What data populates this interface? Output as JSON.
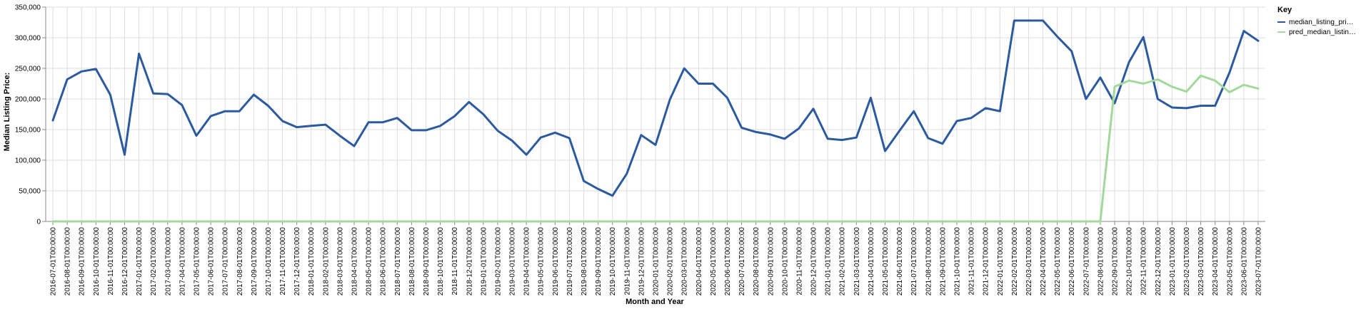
{
  "chart_data": {
    "type": "line",
    "xlabel": "Month and Year",
    "ylabel": "Median Listing Price:",
    "ylim": [
      0,
      350000
    ],
    "yticks": [
      "0",
      "50,000",
      "100,000",
      "150,000",
      "200,000",
      "250,000",
      "300,000",
      "350,000"
    ],
    "grid": true,
    "legend_position": "right",
    "legend_title": "Key",
    "x": [
      "2016-07-01T00:00:00",
      "2016-08-01T00:00:00",
      "2016-09-01T00:00:00",
      "2016-10-01T00:00:00",
      "2016-11-01T00:00:00",
      "2016-12-01T00:00:00",
      "2017-01-01T00:00:00",
      "2017-02-01T00:00:00",
      "2017-03-01T00:00:00",
      "2017-04-01T00:00:00",
      "2017-05-01T00:00:00",
      "2017-06-01T00:00:00",
      "2017-07-01T00:00:00",
      "2017-08-01T00:00:00",
      "2017-09-01T00:00:00",
      "2017-10-01T00:00:00",
      "2017-11-01T00:00:00",
      "2017-12-01T00:00:00",
      "2018-01-01T00:00:00",
      "2018-02-01T00:00:00",
      "2018-03-01T00:00:00",
      "2018-04-01T00:00:00",
      "2018-05-01T00:00:00",
      "2018-06-01T00:00:00",
      "2018-07-01T00:00:00",
      "2018-08-01T00:00:00",
      "2018-09-01T00:00:00",
      "2018-10-01T00:00:00",
      "2018-11-01T00:00:00",
      "2018-12-01T00:00:00",
      "2019-01-01T00:00:00",
      "2019-02-01T00:00:00",
      "2019-03-01T00:00:00",
      "2019-04-01T00:00:00",
      "2019-05-01T00:00:00",
      "2019-06-01T00:00:00",
      "2019-07-01T00:00:00",
      "2019-08-01T00:00:00",
      "2019-09-01T00:00:00",
      "2019-10-01T00:00:00",
      "2019-11-01T00:00:00",
      "2019-12-01T00:00:00",
      "2020-01-01T00:00:00",
      "2020-02-01T00:00:00",
      "2020-03-01T00:00:00",
      "2020-04-01T00:00:00",
      "2020-05-01T00:00:00",
      "2020-06-01T00:00:00",
      "2020-07-01T00:00:00",
      "2020-08-01T00:00:00",
      "2020-09-01T00:00:00",
      "2020-10-01T00:00:00",
      "2020-11-01T00:00:00",
      "2020-12-01T00:00:00",
      "2021-01-01T00:00:00",
      "2021-02-01T00:00:00",
      "2021-03-01T00:00:00",
      "2021-04-01T00:00:00",
      "2021-05-01T00:00:00",
      "2021-06-01T00:00:00",
      "2021-07-01T00:00:00",
      "2021-08-01T00:00:00",
      "2021-09-01T00:00:00",
      "2021-10-01T00:00:00",
      "2021-11-01T00:00:00",
      "2021-12-01T00:00:00",
      "2022-01-01T00:00:00",
      "2022-02-01T00:00:00",
      "2022-03-01T00:00:00",
      "2022-04-01T00:00:00",
      "2022-05-01T00:00:00",
      "2022-06-01T00:00:00",
      "2022-07-01T00:00:00",
      "2022-08-01T00:00:00",
      "2022-09-01T00:00:00",
      "2022-10-01T00:00:00",
      "2022-11-01T00:00:00",
      "2022-12-01T00:00:00",
      "2023-01-01T00:00:00",
      "2023-02-01T00:00:00",
      "2023-03-01T00:00:00",
      "2023-04-01T00:00:00",
      "2023-05-01T00:00:00",
      "2023-06-01T00:00:00",
      "2023-07-01T00:00:00"
    ],
    "series": [
      {
        "name": "median_listing_pri…",
        "color": "#2c5aa0",
        "values": [
          165000,
          232000,
          245000,
          249000,
          207000,
          109000,
          274000,
          209000,
          208000,
          190000,
          140000,
          172000,
          180000,
          180000,
          207000,
          189000,
          164000,
          154000,
          156000,
          158000,
          140000,
          123000,
          162000,
          162000,
          169000,
          149000,
          149000,
          156000,
          172000,
          195000,
          175000,
          148000,
          132000,
          109000,
          137000,
          145000,
          136000,
          66000,
          53000,
          42000,
          78000,
          141000,
          125000,
          199000,
          250000,
          225000,
          225000,
          202000,
          153000,
          146000,
          142000,
          135000,
          152000,
          184000,
          135000,
          133000,
          137000,
          202000,
          115000,
          148000,
          180000,
          136000,
          127000,
          164000,
          169000,
          185000,
          180000,
          328000,
          328000,
          328000,
          302000,
          278000,
          200000,
          235000,
          193000,
          260000,
          301000,
          200000,
          186000,
          185000,
          189000,
          189000,
          243000,
          311000,
          295000
        ]
      },
      {
        "name": "pred_median_listin…",
        "color": "#a1d99b",
        "values": [
          0,
          0,
          0,
          0,
          0,
          0,
          0,
          0,
          0,
          0,
          0,
          0,
          0,
          0,
          0,
          0,
          0,
          0,
          0,
          0,
          0,
          0,
          0,
          0,
          0,
          0,
          0,
          0,
          0,
          0,
          0,
          0,
          0,
          0,
          0,
          0,
          0,
          0,
          0,
          0,
          0,
          0,
          0,
          0,
          0,
          0,
          0,
          0,
          0,
          0,
          0,
          0,
          0,
          0,
          0,
          0,
          0,
          0,
          0,
          0,
          0,
          0,
          0,
          0,
          0,
          0,
          0,
          0,
          0,
          0,
          0,
          0,
          0,
          0,
          220000,
          230000,
          225000,
          232000,
          220000,
          212000,
          238000,
          230000,
          211000,
          223000,
          217000
        ]
      }
    ]
  }
}
